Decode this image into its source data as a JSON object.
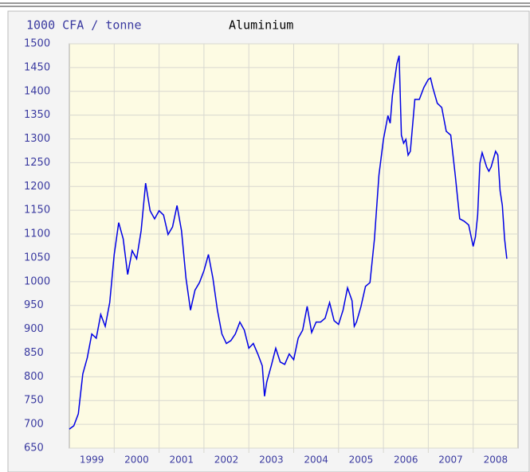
{
  "chart_data": {
    "type": "line",
    "unit_label": "1000 CFA / tonne",
    "title": "Aluminium",
    "x": [
      1999.0,
      1999.1,
      1999.2,
      1999.3,
      1999.4,
      1999.5,
      1999.6,
      1999.7,
      1999.8,
      1999.9,
      2000.0,
      2000.1,
      2000.2,
      2000.3,
      2000.4,
      2000.5,
      2000.6,
      2000.7,
      2000.8,
      2000.9,
      2001.0,
      2001.1,
      2001.2,
      2001.3,
      2001.4,
      2001.5,
      2001.6,
      2001.7,
      2001.8,
      2001.9,
      2002.0,
      2002.1,
      2002.2,
      2002.3,
      2002.4,
      2002.5,
      2002.6,
      2002.7,
      2002.8,
      2002.9,
      2003.0,
      2003.1,
      2003.2,
      2003.3,
      2003.35,
      2003.4,
      2003.5,
      2003.6,
      2003.7,
      2003.8,
      2003.9,
      2004.0,
      2004.1,
      2004.2,
      2004.3,
      2004.4,
      2004.5,
      2004.6,
      2004.7,
      2004.8,
      2004.9,
      2005.0,
      2005.1,
      2005.2,
      2005.3,
      2005.35,
      2005.4,
      2005.5,
      2005.6,
      2005.7,
      2005.8,
      2005.9,
      2006.0,
      2006.1,
      2006.15,
      2006.2,
      2006.3,
      2006.35,
      2006.4,
      2006.45,
      2006.5,
      2006.55,
      2006.6,
      2006.7,
      2006.8,
      2006.9,
      2007.0,
      2007.05,
      2007.1,
      2007.2,
      2007.3,
      2007.4,
      2007.5,
      2007.6,
      2007.7,
      2007.8,
      2007.9,
      2008.0,
      2008.05,
      2008.1,
      2008.15,
      2008.2,
      2008.3,
      2008.35,
      2008.4,
      2008.5,
      2008.55,
      2008.6,
      2008.65,
      2008.7,
      2008.75
    ],
    "series": [
      {
        "name": "Aluminium",
        "color": "#0000e6",
        "values": [
          690,
          697,
          722,
          806,
          840,
          890,
          881,
          931,
          906,
          956,
          1057,
          1124,
          1090,
          1015,
          1065,
          1048,
          1107,
          1207,
          1149,
          1132,
          1149,
          1140,
          1099,
          1115,
          1160,
          1107,
          1007,
          940,
          982,
          998,
          1023,
          1057,
          1007,
          940,
          890,
          870,
          876,
          890,
          915,
          898,
          860,
          870,
          848,
          823,
          759,
          789,
          823,
          860,
          831,
          826,
          848,
          836,
          881,
          898,
          948,
          893,
          915,
          915,
          923,
          956,
          918,
          910,
          940,
          987,
          960,
          906,
          915,
          948,
          990,
          998,
          1090,
          1224,
          1299,
          1349,
          1333,
          1391,
          1458,
          1475,
          1308,
          1291,
          1299,
          1266,
          1274,
          1383,
          1383,
          1408,
          1425,
          1428,
          1408,
          1375,
          1366,
          1316,
          1308,
          1224,
          1132,
          1127,
          1119,
          1074,
          1094,
          1140,
          1249,
          1271,
          1241,
          1232,
          1241,
          1274,
          1266,
          1191,
          1160,
          1090,
          1048
        ]
      }
    ],
    "xlim": [
      1999,
      2009
    ],
    "xticks": [
      {
        "value": 1999.5,
        "label": "1999"
      },
      {
        "value": 2000.5,
        "label": "2000"
      },
      {
        "value": 2001.5,
        "label": "2001"
      },
      {
        "value": 2002.5,
        "label": "2002"
      },
      {
        "value": 2003.5,
        "label": "2003"
      },
      {
        "value": 2004.5,
        "label": "2004"
      },
      {
        "value": 2005.5,
        "label": "2005"
      },
      {
        "value": 2006.5,
        "label": "2006"
      },
      {
        "value": 2007.5,
        "label": "2007"
      },
      {
        "value": 2008.5,
        "label": "2008"
      }
    ],
    "xgrid": [
      2000,
      2001,
      2002,
      2003,
      2004,
      2005,
      2006,
      2007,
      2008
    ],
    "ylim": [
      650,
      1500
    ],
    "yticks": [
      650,
      700,
      750,
      800,
      850,
      900,
      950,
      1000,
      1050,
      1100,
      1150,
      1200,
      1250,
      1300,
      1350,
      1400,
      1450,
      1500
    ],
    "grid": true
  }
}
